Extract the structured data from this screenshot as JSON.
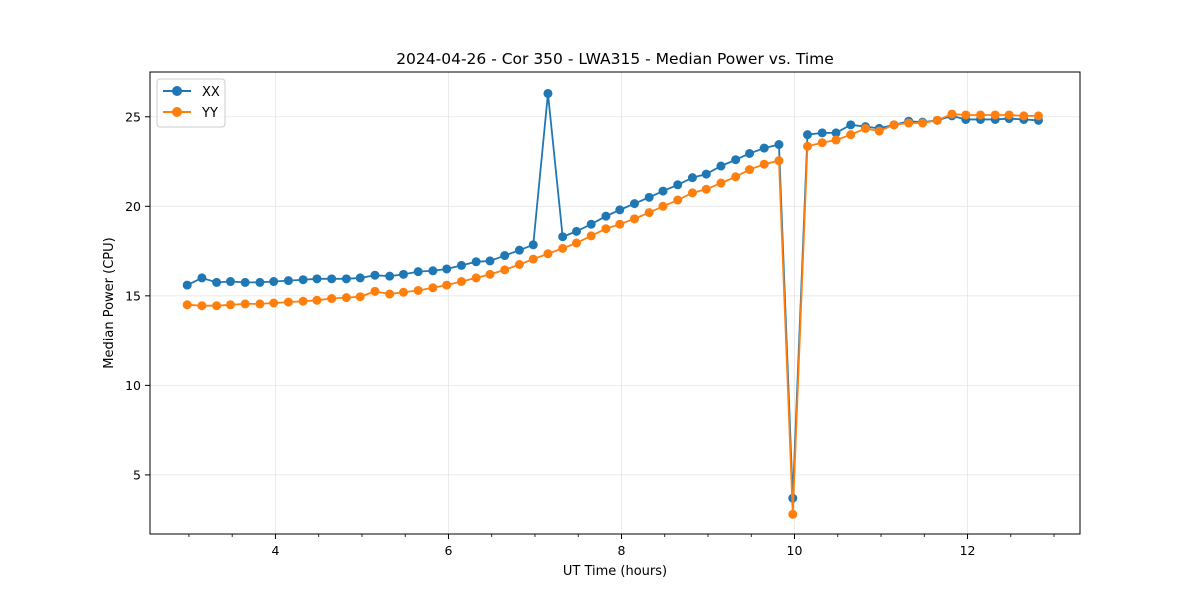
{
  "chart_data": {
    "type": "line",
    "title": "2024-04-26 - Cor 350 - LWA315 - Median Power vs. Time",
    "xlabel": "UT Time (hours)",
    "ylabel": "Median Power (CPU)",
    "xlim": [
      2.55,
      13.3
    ],
    "ylim": [
      1.7,
      27.5
    ],
    "xticks": [
      4,
      6,
      8,
      10,
      12
    ],
    "yticks": [
      5,
      10,
      15,
      20,
      25
    ],
    "x_minor_step": 0.5,
    "grid": true,
    "legend_position": "top-left",
    "x": [
      2.98,
      3.15,
      3.32,
      3.48,
      3.65,
      3.82,
      3.98,
      4.15,
      4.32,
      4.48,
      4.65,
      4.82,
      4.98,
      5.15,
      5.32,
      5.48,
      5.65,
      5.82,
      5.98,
      6.15,
      6.32,
      6.48,
      6.65,
      6.82,
      6.98,
      7.15,
      7.32,
      7.48,
      7.65,
      7.82,
      7.98,
      8.15,
      8.32,
      8.48,
      8.65,
      8.82,
      8.98,
      9.15,
      9.32,
      9.48,
      9.65,
      9.82,
      9.98,
      10.15,
      10.32,
      10.48,
      10.65,
      10.82,
      10.98,
      11.15,
      11.32,
      11.48,
      11.65,
      11.82,
      11.98,
      12.15,
      12.32,
      12.48,
      12.65,
      12.82
    ],
    "series": [
      {
        "name": "XX",
        "color": "#1f77b4",
        "values": [
          15.6,
          16.0,
          15.75,
          15.8,
          15.75,
          15.75,
          15.8,
          15.85,
          15.9,
          15.95,
          15.95,
          15.95,
          16.0,
          16.15,
          16.1,
          16.2,
          16.35,
          16.4,
          16.5,
          16.7,
          16.9,
          16.95,
          17.25,
          17.55,
          17.85,
          26.3,
          18.3,
          18.6,
          19.0,
          19.45,
          19.8,
          20.15,
          20.5,
          20.85,
          21.2,
          21.6,
          21.8,
          22.25,
          22.6,
          22.95,
          23.25,
          23.45,
          3.7,
          24.0,
          24.1,
          24.1,
          24.55,
          24.45,
          24.35,
          24.55,
          24.75,
          24.7,
          24.8,
          25.05,
          24.85,
          24.85,
          24.85,
          24.9,
          24.85,
          24.8
        ]
      },
      {
        "name": "YY",
        "color": "#ff7f0e",
        "values": [
          14.5,
          14.45,
          14.45,
          14.5,
          14.55,
          14.55,
          14.6,
          14.65,
          14.7,
          14.75,
          14.85,
          14.9,
          14.95,
          15.25,
          15.1,
          15.2,
          15.3,
          15.45,
          15.6,
          15.8,
          16.0,
          16.2,
          16.45,
          16.75,
          17.05,
          17.35,
          17.65,
          17.95,
          18.35,
          18.75,
          19.0,
          19.3,
          19.65,
          20.0,
          20.35,
          20.75,
          20.95,
          21.3,
          21.65,
          22.05,
          22.35,
          22.55,
          2.8,
          23.35,
          23.55,
          23.7,
          24.0,
          24.35,
          24.2,
          24.55,
          24.65,
          24.65,
          24.8,
          25.15,
          25.1,
          25.1,
          25.1,
          25.1,
          25.05,
          25.05
        ]
      }
    ]
  }
}
